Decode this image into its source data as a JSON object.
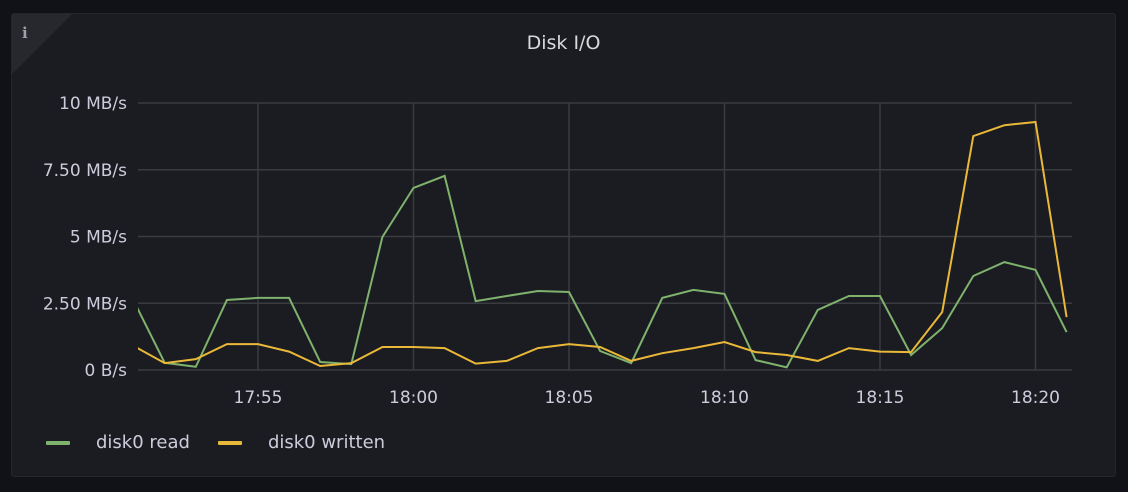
{
  "panel": {
    "title": "Disk I/O",
    "info_icon": "info-icon"
  },
  "chart_data": {
    "type": "line",
    "title": "Disk I/O",
    "xlabel": "",
    "ylabel": "",
    "x": [
      "17:51",
      "17:52",
      "17:53",
      "17:54",
      "17:55",
      "17:56",
      "17:57",
      "17:58",
      "17:59",
      "18:00",
      "18:01",
      "18:02",
      "18:03",
      "18:04",
      "18:05",
      "18:06",
      "18:07",
      "18:08",
      "18:09",
      "18:10",
      "18:11",
      "18:12",
      "18:13",
      "18:14",
      "18:15",
      "18:16",
      "18:17",
      "18:18",
      "18:19",
      "18:20",
      "18:21"
    ],
    "xticks": [
      "17:55",
      "18:00",
      "18:05",
      "18:10",
      "18:15",
      "18:20"
    ],
    "xlim": [
      "17:51",
      "18:21"
    ],
    "ylim": [
      0,
      10
    ],
    "yticks": [
      0,
      2.5,
      5,
      7.5,
      10
    ],
    "ytick_labels": [
      "0 B/s",
      "2.50 MB/s",
      "5 MB/s",
      "7.50 MB/s",
      "10 MB/s"
    ],
    "grid": true,
    "legend_position": "bottom-left",
    "series": [
      {
        "name": "disk0 read",
        "color": "#7eb26d",
        "values": [
          2.6,
          0.27,
          0.12,
          2.62,
          2.7,
          2.7,
          0.3,
          0.22,
          4.98,
          6.82,
          7.27,
          2.58,
          2.77,
          2.96,
          2.92,
          0.71,
          0.26,
          2.7,
          3.0,
          2.85,
          0.37,
          0.1,
          2.25,
          2.77,
          2.77,
          0.56,
          1.57,
          3.52,
          4.04,
          3.75,
          1.42
        ]
      },
      {
        "name": "disk0 written",
        "color": "#eab839",
        "values": [
          0.9,
          0.26,
          0.41,
          0.97,
          0.97,
          0.69,
          0.15,
          0.26,
          0.86,
          0.86,
          0.82,
          0.24,
          0.34,
          0.82,
          0.97,
          0.86,
          0.34,
          0.63,
          0.82,
          1.05,
          0.67,
          0.56,
          0.34,
          0.82,
          0.69,
          0.67,
          2.17,
          8.76,
          9.17,
          9.29,
          1.98
        ]
      }
    ]
  }
}
